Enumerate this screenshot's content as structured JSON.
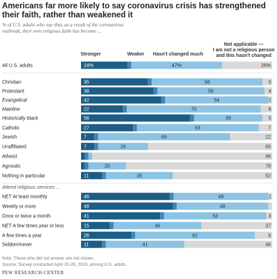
{
  "title": "Americans far more likely to say coronavirus crisis has strengthened their faith, rather than weakened it",
  "subtitle": "% of U.S. adults who say that, as a result of the coronavirus outbreak, their own religious faith has become ...",
  "note": "Note: Those who did not answer are not shown.",
  "source": "Source: Survey conducted April 20-26, 2020, among U.S. adults.",
  "brand": "PEW RESEARCH CENTER",
  "colors": {
    "stronger": "#1d5e86",
    "weaker": "#3f86b8",
    "unchanged": "#8dc3e3",
    "na": "#d9d9d9"
  },
  "chart_data": {
    "type": "bar",
    "orientation": "horizontal",
    "stacked": true,
    "legend_position": "top",
    "xlim": [
      0,
      100
    ],
    "series": [
      {
        "key": "stronger",
        "name": "Stronger"
      },
      {
        "key": "weaker",
        "name": "Weaker"
      },
      {
        "key": "unchanged",
        "name": "Hasn't changed much"
      },
      {
        "key": "na",
        "name": "Not applicable — I am not a religious person and this hasn't changed"
      }
    ],
    "section_label": "Attend religious services ...",
    "rows": [
      {
        "label": "All U.S. adults",
        "values": [
          24,
          2,
          47,
          26
        ],
        "labels": [
          "24%",
          "2%",
          "47%",
          "26%"
        ],
        "italic": false
      },
      {
        "label": "Christian",
        "values": [
          35,
          2,
          58,
          5
        ],
        "italic": false
      },
      {
        "label": "Protestant",
        "values": [
          38,
          2,
          56,
          4
        ],
        "italic": false
      },
      {
        "label": "Evangelical",
        "values": [
          42,
          2,
          54,
          2
        ],
        "italic": true
      },
      {
        "label": "Mainline",
        "values": [
          22,
          2,
          70,
          6
        ],
        "italic": true
      },
      {
        "label": "Historically black",
        "values": [
          56,
          2,
          35,
          5
        ],
        "italic": true
      },
      {
        "label": "Catholic",
        "values": [
          27,
          2,
          63,
          7
        ],
        "italic": false
      },
      {
        "label": "Jewish",
        "values": [
          7,
          2,
          69,
          22
        ],
        "italic": false
      },
      {
        "label": "Unaffiliated",
        "values": [
          7,
          2,
          26,
          65
        ],
        "italic": false
      },
      {
        "label": "Atheist",
        "values": [
          2,
          2,
          2,
          96
        ],
        "labels": [
          "",
          "",
          "",
          "96"
        ],
        "italic": false
      },
      {
        "label": "Agnostic",
        "values": [
          2,
          2,
          20,
          78
        ],
        "labels": [
          "",
          "",
          "20",
          "78"
        ],
        "italic": false
      },
      {
        "label": "Nothing in particular",
        "values": [
          11,
          2,
          35,
          52
        ],
        "labels": [
          "11",
          "",
          "35",
          "52"
        ],
        "italic": false
      },
      {
        "label": "NET At least monthly",
        "values": [
          46,
          2,
          49,
          2
        ],
        "italic": false
      },
      {
        "label": "Weekly or more",
        "values": [
          48,
          2,
          48,
          2
        ],
        "labels": [
          "48",
          "2",
          "48",
          ""
        ],
        "italic": false
      },
      {
        "label": "Once or twice a month",
        "values": [
          41,
          2,
          53,
          3
        ],
        "italic": false
      },
      {
        "label": "NET A few times year or less",
        "values": [
          15,
          2,
          46,
          37
        ],
        "labels": [
          "15",
          "",
          "46",
          "37"
        ],
        "italic": false
      },
      {
        "label": "A few times a year",
        "values": [
          26,
          2,
          62,
          9
        ],
        "italic": false
      },
      {
        "label": "Seldom/never",
        "values": [
          11,
          2,
          41,
          46
        ],
        "labels": [
          "11",
          "",
          "41",
          "46"
        ],
        "italic": false
      }
    ]
  }
}
